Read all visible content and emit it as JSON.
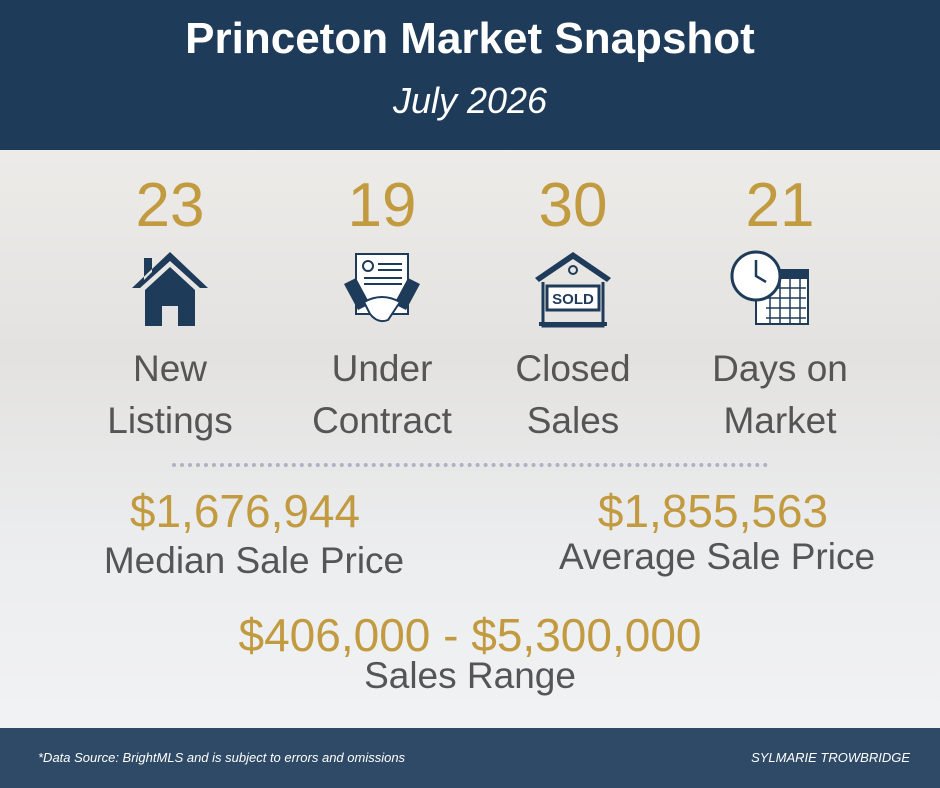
{
  "header": {
    "title": "Princeton Market Snapshot",
    "subtitle": "July 2026"
  },
  "stats": [
    {
      "value": 23,
      "label": "New Listings"
    },
    {
      "value": 19,
      "label": "Under Contract"
    },
    {
      "value": 30,
      "label": "Closed Sales"
    },
    {
      "value": 21,
      "label": "Days on Market"
    }
  ],
  "prices": [
    {
      "value": "$1,676,944",
      "label": "Median Sale Price"
    },
    {
      "value": "$1,855,563",
      "label": "Average Sale Price"
    }
  ],
  "range": {
    "value": "$406,000 - $5,300,000",
    "label": "Sales Range"
  },
  "footer": {
    "source": "*Data Source: BrightMLS and is subject to errors and omissions",
    "author": "SYLMARIE TROWBRIDGE"
  }
}
